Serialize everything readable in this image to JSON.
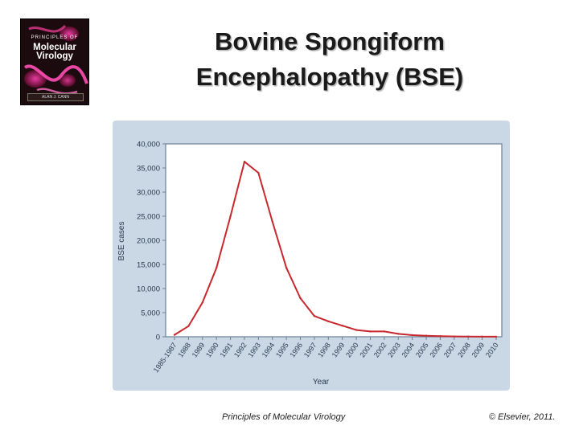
{
  "slide": {
    "title_line1": "Bovine Spongiform",
    "title_line2": "Encephalopathy (BSE)",
    "footer_left": "Principles of Molecular Virology",
    "footer_right": "© Elsevier, 2011."
  },
  "book_cover": {
    "line1": "PRINCIPLES OF",
    "line2": "Molecular",
    "line3": "Virology",
    "author": "ALAN J. CANN"
  },
  "colors": {
    "line": "#c8282d",
    "frame": "#cad8e6",
    "axis": "#6a7f96",
    "text": "#2b3a4a"
  },
  "chart_data": {
    "type": "line",
    "xlabel": "Year",
    "ylabel": "BSE cases",
    "ylim": [
      0,
      40000
    ],
    "y_ticks": [
      "0",
      "5,000",
      "10,000",
      "15,000",
      "20,000",
      "25,000",
      "30,000",
      "35,000",
      "40,000"
    ],
    "x_ticks": [
      "1985-1987",
      "1988",
      "1989",
      "1990",
      "1991",
      "1992",
      "1993",
      "1994",
      "1995",
      "1996",
      "1997",
      "1998",
      "1999",
      "2000",
      "2001",
      "2002",
      "2003",
      "2004",
      "2005",
      "2006",
      "2007",
      "2008",
      "2009",
      "2010"
    ],
    "values": [
      400,
      2200,
      7100,
      14300,
      25000,
      36300,
      34000,
      23900,
      14300,
      8000,
      4300,
      3200,
      2300,
      1400,
      1100,
      1100,
      600,
      340,
      220,
      110,
      60,
      40,
      20,
      10
    ],
    "grid": false,
    "legend": "none"
  }
}
